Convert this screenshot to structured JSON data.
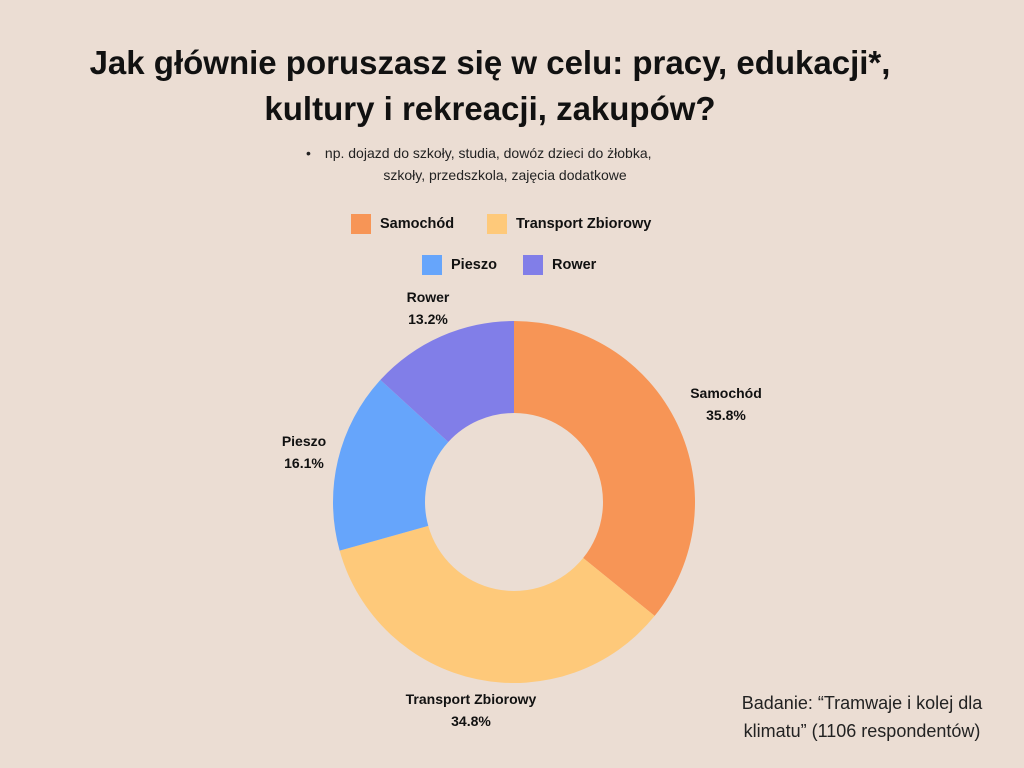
{
  "header": {
    "title_line1": "Jak głównie poruszasz się w celu: pracy, edukacji*,",
    "title_line2": "kultury i rekreacji, zakupów?"
  },
  "note": {
    "line1": "np. dojazd do szkoły, studia, dowóz dzieci do żłobka,",
    "line2": "szkoły, przedszkola, zajęcia dodatkowe"
  },
  "source": {
    "line1": "Badanie: “Tramwaje i kolej dla",
    "line2": "klimatu” (1106 respondentów)"
  },
  "colors": {
    "background": "#ebddd3",
    "samochod": "#f79556",
    "transport": "#fec97a",
    "pieszo": "#66a5fb",
    "rower": "#817ee8"
  },
  "chart_data": {
    "type": "pie",
    "donut": true,
    "title": "Jak głównie poruszasz się w celu: pracy, edukacji*, kultury i rekreacji, zakupów?",
    "legend_position": "top",
    "categories": [
      "Samochód",
      "Transport Zbiorowy",
      "Pieszo",
      "Rower"
    ],
    "values": [
      35.8,
      34.8,
      16.1,
      13.2
    ],
    "value_labels": [
      "35.8%",
      "34.8%",
      "16.1%",
      "13.2%"
    ],
    "colors": [
      "#f79556",
      "#fec97a",
      "#66a5fb",
      "#817ee8"
    ]
  }
}
